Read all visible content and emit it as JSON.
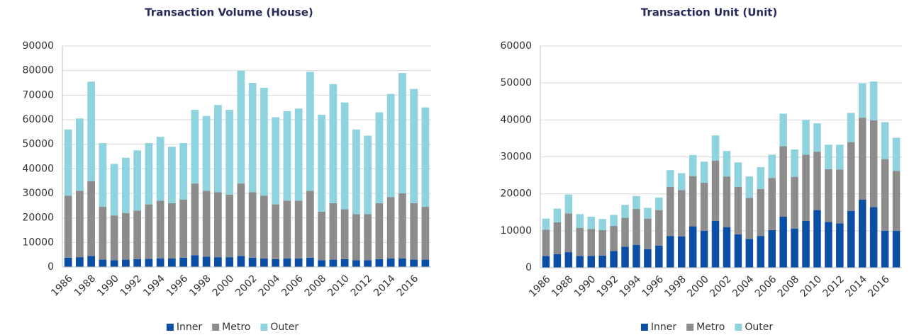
{
  "chart_data": [
    {
      "type": "stacked_bar",
      "title": "Transaction Volume (House)",
      "categories": [
        "1986",
        null,
        "1988",
        null,
        "1990",
        null,
        "1992",
        null,
        "1994",
        null,
        "1996",
        null,
        "1998",
        null,
        "2000",
        null,
        "2002",
        null,
        "2004",
        null,
        "2006",
        null,
        "2008",
        null,
        "2010",
        null,
        "2012",
        null,
        "2014",
        null,
        "2016",
        null
      ],
      "series": [
        {
          "name": "Inner",
          "color": "#0b4ea6",
          "values": [
            3800,
            4000,
            4500,
            3000,
            2800,
            3000,
            3200,
            3300,
            3500,
            3500,
            3800,
            4800,
            4200,
            4000,
            4000,
            4500,
            3800,
            3500,
            3200,
            3500,
            3500,
            3800,
            2800,
            3000,
            3200,
            2800,
            2800,
            3200,
            3500,
            3500,
            3000,
            3000
          ]
        },
        {
          "name": "Metro",
          "color": "#8c8c8c",
          "values": [
            25200,
            27000,
            30500,
            21500,
            18200,
            19000,
            19800,
            22200,
            23500,
            22500,
            23700,
            29200,
            26800,
            26500,
            25500,
            29500,
            26700,
            25500,
            22300,
            23500,
            23500,
            27200,
            19700,
            23000,
            20300,
            18700,
            18700,
            22800,
            25000,
            26500,
            23000,
            21500
          ]
        },
        {
          "name": "Outer",
          "color": "#8fd3df",
          "values": [
            27000,
            29500,
            40500,
            26000,
            21000,
            22500,
            24500,
            25000,
            26000,
            23000,
            23000,
            30000,
            30500,
            35500,
            34500,
            46000,
            44500,
            44000,
            35500,
            36500,
            37500,
            48500,
            39500,
            48500,
            43500,
            34500,
            32000,
            37000,
            42000,
            49000,
            46500,
            40500
          ]
        }
      ],
      "ylim": [
        0,
        90000
      ],
      "yticks": [
        0,
        10000,
        20000,
        30000,
        40000,
        50000,
        60000,
        70000,
        80000,
        90000
      ],
      "grid": true
    },
    {
      "type": "stacked_bar",
      "title": "Transaction Unit (Unit)",
      "categories": [
        "1986",
        null,
        "1988",
        null,
        "1990",
        null,
        "1992",
        null,
        "1994",
        null,
        "1996",
        null,
        "1998",
        null,
        "2000",
        null,
        "2002",
        null,
        "2004",
        null,
        "2006",
        null,
        "2008",
        null,
        "2010",
        null,
        "2012",
        null,
        "2014",
        null,
        "2016",
        null
      ],
      "series": [
        {
          "name": "Inner",
          "color": "#0b4ea6",
          "values": [
            3200,
            3700,
            4200,
            3200,
            3200,
            3300,
            4500,
            5700,
            6200,
            5000,
            6000,
            8600,
            8500,
            11200,
            10000,
            12700,
            11000,
            9000,
            7800,
            8600,
            10200,
            13800,
            10600,
            12700,
            15600,
            12400,
            12000,
            15400,
            18400,
            16400,
            10000,
            10000
          ]
        },
        {
          "name": "Metro",
          "color": "#8c8c8c",
          "values": [
            7100,
            8600,
            10500,
            7600,
            7300,
            6900,
            6800,
            7800,
            9700,
            8300,
            9600,
            13300,
            12500,
            13600,
            13000,
            16300,
            13700,
            12900,
            11100,
            12700,
            14100,
            19100,
            14000,
            17900,
            15800,
            14300,
            14600,
            18600,
            22200,
            23500,
            19400,
            16200
          ]
        },
        {
          "name": "Outer",
          "color": "#8fd3df",
          "values": [
            3000,
            3700,
            5100,
            3700,
            3300,
            3000,
            3000,
            3500,
            3500,
            2900,
            3400,
            4500,
            4600,
            5700,
            5700,
            6800,
            6900,
            6600,
            5800,
            5900,
            6300,
            8800,
            7400,
            9400,
            7700,
            6600,
            6700,
            7900,
            9300,
            10500,
            10000,
            9000
          ]
        }
      ],
      "ylim": [
        0,
        60000
      ],
      "yticks": [
        0,
        10000,
        20000,
        30000,
        40000,
        50000,
        60000
      ],
      "grid": true
    }
  ]
}
